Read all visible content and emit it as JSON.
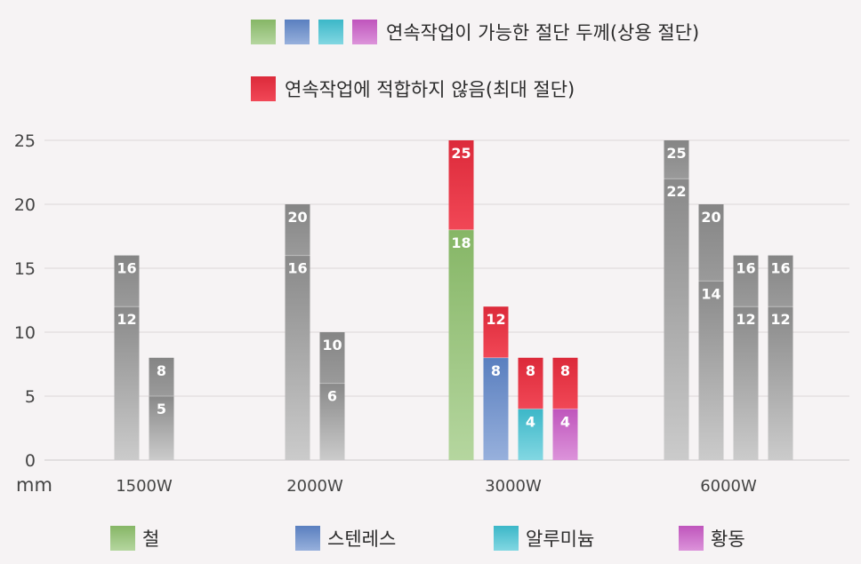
{
  "top_legend": {
    "continuous_label": "연속작업이 가능한 절단 두께(상용 절단)",
    "continuous_swatches": [
      "steel",
      "stainless",
      "aluminum",
      "brass"
    ],
    "max_label": "연속작업에 적합하지 않음(최대 절단)"
  },
  "colors": {
    "steel": "#8dc06b",
    "stainless": "#5f86c9",
    "aluminum": "#3fc1d3",
    "brass": "#c959c6",
    "max": "#ef2e3f",
    "gray": "#8c8c8c"
  },
  "bottom_legend": [
    {
      "key": "steel",
      "label": "철"
    },
    {
      "key": "stainless",
      "label": "스텐레스"
    },
    {
      "key": "aluminum",
      "label": "알루미늄"
    },
    {
      "key": "brass",
      "label": "황동"
    }
  ],
  "chart_data": {
    "type": "bar",
    "title": "",
    "xlabel": "",
    "ylabel": "mm",
    "ylim": [
      0,
      25
    ],
    "yticks": [
      0,
      5,
      10,
      15,
      20,
      25
    ],
    "grid": true,
    "categories": [
      "1500W",
      "2000W",
      "3000W",
      "6000W"
    ],
    "groups": [
      {
        "category": "1500W",
        "bars": [
          {
            "material": "steel",
            "colored": false,
            "continuous": 12,
            "max": 16
          },
          {
            "material": "stainless",
            "colored": false,
            "continuous": 5,
            "max": 8
          }
        ]
      },
      {
        "category": "2000W",
        "bars": [
          {
            "material": "steel",
            "colored": false,
            "continuous": 16,
            "max": 20
          },
          {
            "material": "stainless",
            "colored": false,
            "continuous": 6,
            "max": 10
          }
        ]
      },
      {
        "category": "3000W",
        "bars": [
          {
            "material": "steel",
            "colored": true,
            "continuous": 18,
            "max": 25
          },
          {
            "material": "stainless",
            "colored": true,
            "continuous": 8,
            "max": 12
          },
          {
            "material": "aluminum",
            "colored": true,
            "continuous": 4,
            "max": 8
          },
          {
            "material": "brass",
            "colored": true,
            "continuous": 4,
            "max": 8
          }
        ]
      },
      {
        "category": "6000W",
        "bars": [
          {
            "material": "steel",
            "colored": false,
            "continuous": 22,
            "max": 25
          },
          {
            "material": "stainless",
            "colored": false,
            "continuous": 14,
            "max": 20
          },
          {
            "material": "aluminum",
            "colored": false,
            "continuous": 12,
            "max": 16
          },
          {
            "material": "brass",
            "colored": false,
            "continuous": 12,
            "max": 16
          }
        ]
      }
    ]
  }
}
